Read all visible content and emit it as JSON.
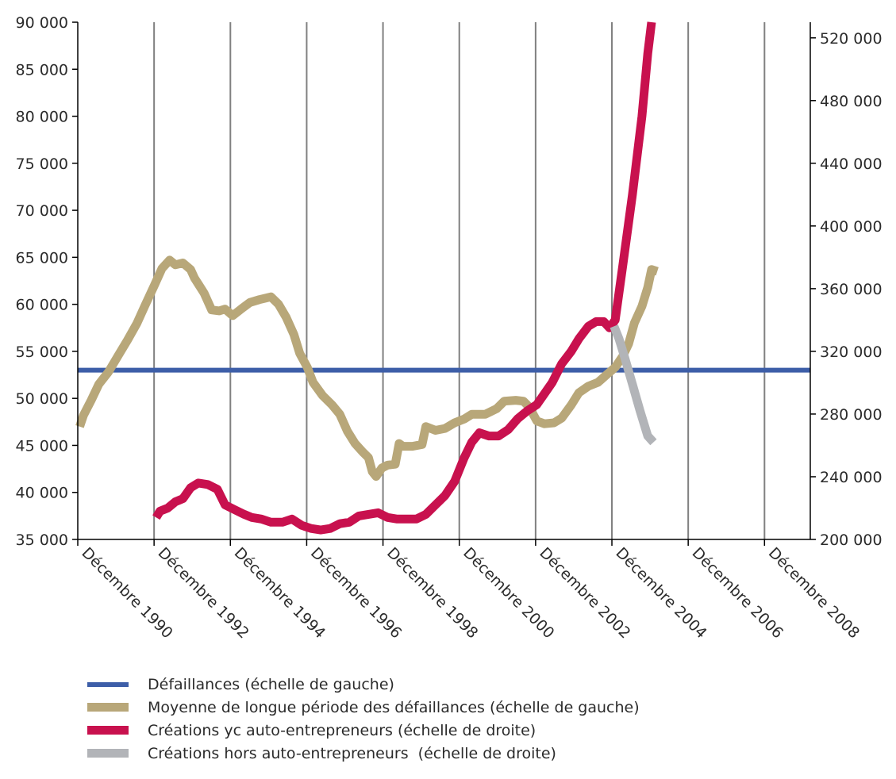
{
  "chart_data": {
    "type": "line",
    "title": "",
    "x_tick_labels": [
      "Décembre 1990",
      "Décembre 1992",
      "Décembre 1994",
      "Décembre 1996",
      "Décembre 1998",
      "Décembre 2000",
      "Décembre 2002",
      "Décembre 2004",
      "Décembre 2006",
      "Décembre 2008"
    ],
    "x_range": [
      1990.95,
      2010.1
    ],
    "y_left": {
      "ylim": [
        35000,
        90000
      ],
      "ticks": [
        35000,
        40000,
        45000,
        50000,
        55000,
        60000,
        65000,
        70000,
        75000,
        80000,
        85000,
        90000
      ],
      "tick_labels": [
        "35 000",
        "40 000",
        "45 000",
        "50 000",
        "55 000",
        "60 000",
        "65 000",
        "70 000",
        "75 000",
        "80 000",
        "85 000",
        "90 000"
      ]
    },
    "y_right": {
      "ylim": [
        200000,
        530000
      ],
      "ticks": [
        200000,
        240000,
        280000,
        320000,
        360000,
        400000,
        440000,
        480000,
        520000
      ],
      "tick_labels": [
        "200 000",
        "240 000",
        "280 000",
        "320 000",
        "360 000",
        "400 000",
        "440 000",
        "480 000",
        "520 000"
      ]
    },
    "grid": "vertical",
    "legend_position": "bottom-left",
    "series": [
      {
        "name": "Défaillances (échelle de gauche)",
        "axis": "left",
        "color": "#3d5ea8",
        "points": [
          [
            1990.95,
            53000
          ],
          [
            2010.1,
            53000
          ]
        ]
      },
      {
        "name": "Moyenne de longue période des défaillances (échelle de gauche)",
        "axis": "left",
        "color": "#b8a779",
        "points": [
          [
            1991.0,
            47000
          ],
          [
            1991.1,
            48200
          ],
          [
            1991.3,
            49800
          ],
          [
            1991.5,
            51500
          ],
          [
            1991.75,
            52800
          ],
          [
            1992.0,
            54500
          ],
          [
            1992.25,
            56200
          ],
          [
            1992.5,
            58000
          ],
          [
            1992.7,
            59800
          ],
          [
            1992.95,
            62000
          ],
          [
            1993.15,
            63800
          ],
          [
            1993.35,
            64700
          ],
          [
            1993.5,
            64200
          ],
          [
            1993.7,
            64400
          ],
          [
            1993.9,
            63700
          ],
          [
            1994.0,
            62800
          ],
          [
            1994.25,
            61200
          ],
          [
            1994.45,
            59400
          ],
          [
            1994.65,
            59300
          ],
          [
            1994.8,
            59500
          ],
          [
            1995.0,
            58800
          ],
          [
            1995.25,
            59600
          ],
          [
            1995.45,
            60200
          ],
          [
            1995.7,
            60500
          ],
          [
            1996.0,
            60800
          ],
          [
            1996.2,
            60000
          ],
          [
            1996.4,
            58600
          ],
          [
            1996.6,
            56800
          ],
          [
            1996.75,
            54800
          ],
          [
            1996.95,
            53300
          ],
          [
            1997.1,
            51700
          ],
          [
            1997.35,
            50300
          ],
          [
            1997.6,
            49300
          ],
          [
            1997.8,
            48300
          ],
          [
            1998.0,
            46500
          ],
          [
            1998.2,
            45200
          ],
          [
            1998.4,
            44300
          ],
          [
            1998.55,
            43700
          ],
          [
            1998.65,
            42200
          ],
          [
            1998.75,
            41700
          ],
          [
            1998.9,
            42600
          ],
          [
            1999.05,
            42900
          ],
          [
            1999.25,
            43000
          ],
          [
            1999.35,
            45200
          ],
          [
            1999.45,
            44900
          ],
          [
            1999.7,
            44900
          ],
          [
            1999.95,
            45100
          ],
          [
            2000.05,
            47000
          ],
          [
            2000.3,
            46600
          ],
          [
            2000.55,
            46800
          ],
          [
            2000.8,
            47400
          ],
          [
            2001.05,
            47800
          ],
          [
            2001.25,
            48300
          ],
          [
            2001.6,
            48300
          ],
          [
            2001.9,
            48900
          ],
          [
            2002.1,
            49700
          ],
          [
            2002.4,
            49800
          ],
          [
            2002.6,
            49700
          ],
          [
            2002.75,
            49100
          ],
          [
            2002.95,
            47600
          ],
          [
            2003.15,
            47300
          ],
          [
            2003.4,
            47400
          ],
          [
            2003.6,
            47900
          ],
          [
            2003.85,
            49300
          ],
          [
            2004.05,
            50600
          ],
          [
            2004.3,
            51300
          ],
          [
            2004.55,
            51700
          ],
          [
            2004.8,
            52600
          ],
          [
            2005.0,
            53300
          ],
          [
            2005.2,
            54500
          ],
          [
            2005.35,
            55800
          ],
          [
            2005.5,
            58000
          ],
          [
            2005.7,
            59800
          ],
          [
            2005.85,
            61800
          ],
          [
            2005.95,
            63700
          ],
          [
            2006.1,
            63500
          ]
        ]
      },
      {
        "name": "Créations yc auto-entrepreneurs (échelle de droite)",
        "axis": "right",
        "color": "#c8114e",
        "points": [
          [
            1993.0,
            214000
          ],
          [
            1993.1,
            218000
          ],
          [
            1993.3,
            220000
          ],
          [
            1993.5,
            224000
          ],
          [
            1993.7,
            226000
          ],
          [
            1993.9,
            233000
          ],
          [
            1994.1,
            236000
          ],
          [
            1994.35,
            235000
          ],
          [
            1994.6,
            232000
          ],
          [
            1994.8,
            222000
          ],
          [
            1995.05,
            219000
          ],
          [
            1995.3,
            216000
          ],
          [
            1995.5,
            214000
          ],
          [
            1995.75,
            213000
          ],
          [
            1996.0,
            211000
          ],
          [
            1996.3,
            211000
          ],
          [
            1996.55,
            213000
          ],
          [
            1996.8,
            209000
          ],
          [
            1997.05,
            207000
          ],
          [
            1997.3,
            206000
          ],
          [
            1997.55,
            207000
          ],
          [
            1997.8,
            210000
          ],
          [
            1998.05,
            211000
          ],
          [
            1998.3,
            215000
          ],
          [
            1998.55,
            216000
          ],
          [
            1998.8,
            217000
          ],
          [
            1999.05,
            214000
          ],
          [
            1999.3,
            213000
          ],
          [
            1999.55,
            213000
          ],
          [
            1999.8,
            213000
          ],
          [
            2000.05,
            216000
          ],
          [
            2000.3,
            222000
          ],
          [
            2000.55,
            228000
          ],
          [
            2000.8,
            237000
          ],
          [
            2001.05,
            252000
          ],
          [
            2001.25,
            262000
          ],
          [
            2001.45,
            268000
          ],
          [
            2001.7,
            266000
          ],
          [
            2001.95,
            266000
          ],
          [
            2002.2,
            270000
          ],
          [
            2002.45,
            277000
          ],
          [
            2002.7,
            282000
          ],
          [
            2002.95,
            286000
          ],
          [
            2003.15,
            293000
          ],
          [
            2003.35,
            300000
          ],
          [
            2003.6,
            312000
          ],
          [
            2003.85,
            320000
          ],
          [
            2004.05,
            328000
          ],
          [
            2004.3,
            336000
          ],
          [
            2004.5,
            339000
          ],
          [
            2004.7,
            339000
          ],
          [
            2004.85,
            335000
          ],
          [
            2005.0,
            340000
          ],
          [
            2005.2,
            375000
          ],
          [
            2005.45,
            420000
          ],
          [
            2005.7,
            470000
          ],
          [
            2005.85,
            510000
          ],
          [
            2005.95,
            530000
          ]
        ]
      },
      {
        "name": "Créations hors auto-entrepreneurs  (échelle de droite)",
        "axis": "right",
        "color": "#b2b4b8",
        "points": [
          [
            2004.97,
            336000
          ],
          [
            2005.1,
            328000
          ],
          [
            2005.25,
            316000
          ],
          [
            2005.45,
            299000
          ],
          [
            2005.65,
            282000
          ],
          [
            2005.85,
            266000
          ],
          [
            2006.0,
            262000
          ]
        ]
      }
    ]
  }
}
